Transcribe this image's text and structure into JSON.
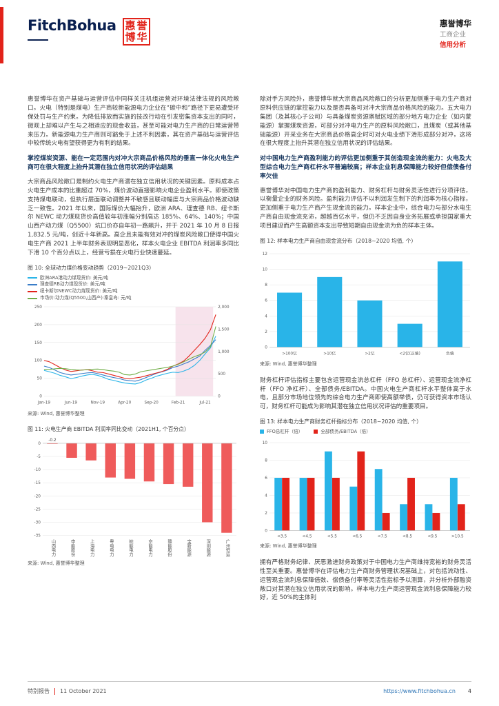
{
  "colors": {
    "accent_red": "#e2231a",
    "heading_blue": "#17365d",
    "cyan": "#29b4e8",
    "link_blue": "#2e75b6"
  },
  "header": {
    "logo_text": "FitchBohua",
    "seal_chars": "惠誉博华",
    "brand_name": "惠誉博华",
    "sector": "工商企业",
    "report_type": "信用分析"
  },
  "left": {
    "para1": "惠誉博华在资产基础与运营评估中同样关注机组运营对环境法律法规的风险敞口。火电（特别是煤电）生产商较新能源电力企业在“碳中和”路径下更易遭受环保处罚与生产约束。为降低排放而实施的技改行动在引发密集资本支出的同时，微观上却难以产生与之相适应的现金收益，甚至可能对电力生产商的日常运营带来压力。新能源电力生产商则可豁免于上述不利因素，其在资产基础与运营评估中较传统火电有望获得更为有利的结果。",
    "heading": "掌控煤炭资源、能在一定范围内对冲大宗商品价格风险的垂直一体化火电生产商可在很大程度上抬升其潜在独立信用状况的评估结果",
    "para2": "大宗商品风险敞口是制约火电生产商潜在独立信用状况的关键因素。原料成本占火电生产成本的比重超过 70%，煤价波动直接影响火电企业盈利水平。即使政策支持煤电联动，但执行层面联动调整并不敏感且联动幅度与大宗商品价格波动缺乏一致性。2021 年以来，国际煤价大幅抬升，欧洲 ARA、理查德 RB、纽卡斯尔 NEWC 动力煤现货价高值较年初涨幅分别高达 185%、64%、140%；中国山西产动力煤（Q5500）坑口价亦自年初一路飙升，并于 2021 年 10 月 8 日报 1,832.5 元/吨，创近十年新高。高企且未能有效对冲的煤炭风险敞口使得中国火电生产商 2021 上半年财务表现明显恶化，样本火电企业 EBITDA 利润率多同比下滑 10 个百分点以上，经营亏损在火电行业快速蔓延。"
  },
  "right": {
    "para1": "除对手方风险外，惠誉博华就大宗商品风险敞口的分析更加侧重于电力生产商对原料供应链的掌控能力以及是否具备可对冲大宗商品价格风险的能力。五大电力集团（及其核心子公司）与具备煤炭资源禀赋区域的部分地方电力企业（如内蒙能源）掌握煤炭资源，可部分对冲电力生产的原料风险敞口，且煤炭（或其他基础能源）开采业务在大宗商品价格高企时可对火电业绩下滑形成部分对冲，这将在很大程度上抬升其潜在独立信用状况的评估结果。",
    "heading": "对中国电力生产商盈利能力的评估更加侧重于其创造现金流的能力：火电及大型综合电力生产商杠杆水平普遍较高；样本企业利息保障能力较好但偿债备付率欠佳",
    "para2": "惠誉博华对中国电力生产商的盈利能力、财务杠杆与财务灵活性进行分项评估，以衡量企业的财务风险。盈利能力评估不以利润发生制下的利润率为核心指标，更加侧重于电力生产商产生现金流的能力。样本企业中，综合电力与部分水电生产商自由现金流充沛，超越百亿水平，但仍不乏因自身业务拓展或承担国家重大项目建设而产生高额资本支出导致短期自由现金流为负的样本主体。",
    "para3": "财务杠杆评估指标主要包含运营现金流总杠杆（FFO 总杠杆）、运营现金流净杠杆（FFO 净杠杆）、全部债务/EBITDA。中国火电生产商杠杆水平整体高于水电，且部分市场地位领先的综合电力生产商即使高额举债，仍可获得资本市场认可，财务杠杆可能成为影响其潜在独立信用状况评估的重要项目。",
    "para4": "拥有严格财务纪律、厌恶激进财务政策对于中国电力生产商维持宽裕的财务灵活性至关重要。惠誉博华在评估电力生产商财务管理状况基础上，对包括流动性、运营现金流利息保障倍数、偿债备付率等灵活性指标予以测算，并分析外部融资敞口对其潜在独立信用状况的影响。样本电力生产商运营现金流利息保障能力较好，近 50%的主体利"
  },
  "chart_data": [
    {
      "id": "fig10",
      "type": "line",
      "title": "图 10: 全球动力煤价格变动趋势（2019~2021Q3）",
      "source": "来源: Wind, 惠誉博华整理",
      "x_count": 33,
      "x_ticks": [
        "Jan-19",
        "Jun-19",
        "Nov-19",
        "Apr-20",
        "Sep-20",
        "Feb-21",
        "Jul-21"
      ],
      "x_tick_idx": [
        0,
        5,
        10,
        15,
        20,
        25,
        30
      ],
      "left_axis": {
        "min": 0,
        "max": 250,
        "step": 50
      },
      "right_axis": {
        "min": 0,
        "max": 2000,
        "step": 500
      },
      "band": [
        24.5,
        31.5
      ],
      "band_color": "#f7e3ec",
      "series": [
        {
          "name": "欧洲ARA港动力煤现货价: 美元/吨",
          "color": "#29b4e8",
          "axis": "left",
          "values": [
            72,
            68,
            64,
            58,
            54,
            49,
            52,
            56,
            59,
            61,
            58,
            53,
            47,
            44,
            40,
            37,
            35,
            34,
            38,
            45,
            50,
            56,
            60,
            64,
            67,
            66,
            70,
            76,
            86,
            100,
            118,
            135,
            168
          ]
        },
        {
          "name": "理查德RB动力煤现货价: 美元/吨",
          "color": "#3a7dc8",
          "axis": "left",
          "values": [
            84,
            80,
            73,
            66,
            62,
            59,
            61,
            63,
            65,
            66,
            63,
            59,
            55,
            52,
            49,
            45,
            43,
            42,
            46,
            52,
            58,
            64,
            68,
            73,
            80,
            84,
            90,
            96,
            104,
            112,
            128,
            142,
            158
          ]
        },
        {
          "name": "纽卡斯尔NEWC动力煤现货价: 美元/吨",
          "color": "#e2231a",
          "axis": "left",
          "values": [
            100,
            96,
            88,
            80,
            73,
            69,
            71,
            73,
            74,
            71,
            67,
            66,
            62,
            58,
            54,
            50,
            48,
            51,
            53,
            57,
            61,
            65,
            69,
            75,
            84,
            90,
            98,
            112,
            128,
            144,
            162,
            186,
            228
          ]
        },
        {
          "name": "市场价:动力煤(Q5500,山西产):秦皇岛: 元/吨",
          "color": "#70ad47",
          "axis": "right",
          "values": [
            600,
            595,
            612,
            622,
            614,
            598,
            586,
            582,
            592,
            602,
            606,
            594,
            572,
            560,
            536,
            482,
            472,
            496,
            544,
            566,
            586,
            606,
            626,
            644,
            672,
            712,
            768,
            826,
            884,
            926,
            986,
            1104,
            1560
          ]
        }
      ]
    },
    {
      "id": "fig11",
      "type": "bar",
      "title": "图 11: 火电生产商 EBITDA 利润率同比变动（2021H1, 个百分点）",
      "source": "来源: Wind, 惠誉博华整理",
      "categories": [
        "山西电力",
        "申能股份",
        "上海电力",
        "粤电电力",
        "皖能电力",
        "京能电力",
        "赣能股份",
        "宝新能源",
        "深圳能源",
        "广州恒运"
      ],
      "values": [
        -0.2,
        -5.5,
        -6.5,
        -13,
        -13.5,
        -14.5,
        -15.5,
        -16.5,
        -30,
        -34
      ],
      "value_labels": [
        "-0.2"
      ],
      "ylim": -35,
      "ystep": 5,
      "color": "#ef5b5b"
    },
    {
      "id": "fig12",
      "type": "bar",
      "title": "图 12: 样本电力生产商自由现金流分布（2018~2020 均值, 个）",
      "source": "来源: Wind, 惠誉博华整理",
      "categories": [
        ">100亿",
        ">10亿",
        ">2亿",
        "<2亿(正值)",
        "负值"
      ],
      "values": [
        7,
        9,
        6,
        3,
        11
      ],
      "ymax": 12,
      "ystep": 2,
      "color": "#29b4e8"
    },
    {
      "id": "fig13",
      "type": "grouped_bar",
      "title": "图 13: 样本电力生产商财务杠杆指标分布（2018~2020 均值, 个）",
      "source": "来源: Wind, 惠誉博华整理",
      "categories": [
        "<3.5",
        "<4.5",
        "<5.5",
        "<6.5",
        "<7.5",
        "<8.5",
        "<9.5",
        ">10.5"
      ],
      "series": [
        {
          "name": "FFO总杠杆（倍）",
          "color": "#29b4e8",
          "values": [
            6,
            6,
            9,
            5,
            7,
            3,
            3,
            6
          ]
        },
        {
          "name": "全部债务/EBITDA（倍）",
          "color": "#e2231a",
          "values": [
            6,
            6,
            6,
            9,
            2,
            6,
            2,
            3
          ]
        }
      ],
      "ymax": 10,
      "ystep": 2
    }
  ],
  "footer": {
    "report_type": "特别报告",
    "date": "11 October 2021",
    "url": "https://www.fitchbohua.cn",
    "page": "4"
  }
}
